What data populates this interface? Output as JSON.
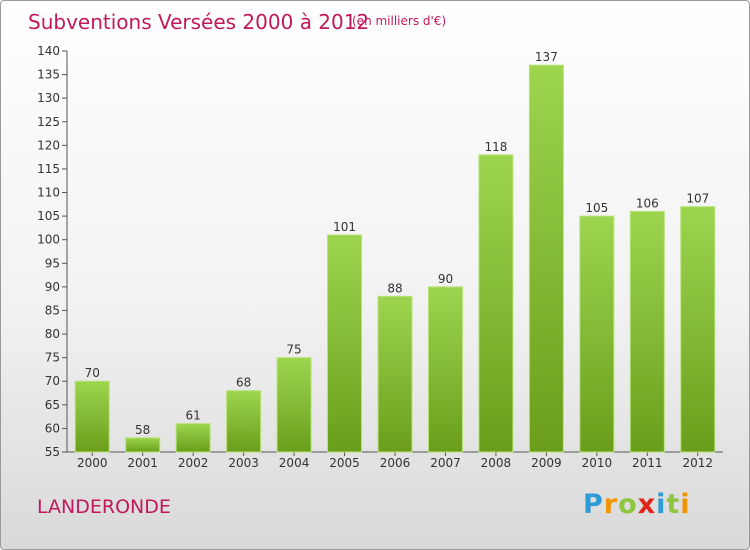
{
  "header": {
    "title": "Subventions Versées 2000 à 2012",
    "unit": "(en milliers d'€)"
  },
  "footer": {
    "commune": "LANDERONDE",
    "logo": "Proxiti"
  },
  "colors": {
    "title": "#c2185b",
    "bar_light": "#9dd54f",
    "bar_dark": "#6a9e1a"
  },
  "chart_data": {
    "type": "bar",
    "title": "Subventions Versées 2000 à 2012",
    "subtitle": "(en milliers d'€)",
    "xlabel": "",
    "ylabel": "",
    "categories": [
      "2000",
      "2001",
      "2002",
      "2003",
      "2004",
      "2005",
      "2006",
      "2007",
      "2008",
      "2009",
      "2010",
      "2011",
      "2012"
    ],
    "values": [
      70,
      58,
      61,
      68,
      75,
      101,
      88,
      90,
      118,
      137,
      105,
      106,
      107
    ],
    "ylim": [
      55,
      140
    ],
    "yticks": [
      55,
      60,
      65,
      70,
      75,
      80,
      85,
      90,
      95,
      100,
      105,
      110,
      115,
      120,
      125,
      130,
      135,
      140
    ],
    "grid": false,
    "legend": "none"
  }
}
